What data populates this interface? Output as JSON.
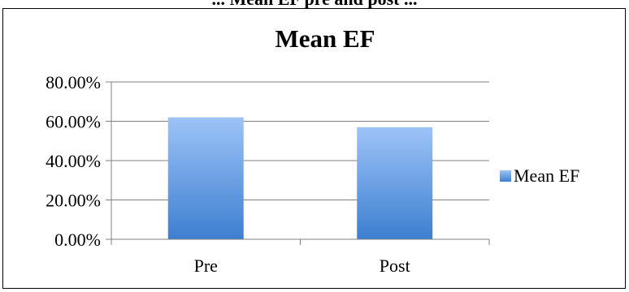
{
  "caption_fragment": "... Mean EF pre and post ...",
  "chart_data": {
    "type": "bar",
    "title": "Mean EF",
    "categories": [
      "Pre",
      "Post"
    ],
    "series": [
      {
        "name": "Mean EF",
        "values": [
          0.62,
          0.57
        ]
      }
    ],
    "ylim": [
      0,
      0.8
    ],
    "yticks": [
      0,
      0.2,
      0.4,
      0.6,
      0.8
    ],
    "ytick_labels": [
      "0.00%",
      "20.00%",
      "40.00%",
      "60.00%",
      "80.00%"
    ],
    "grid": true,
    "legend_position": "right",
    "colors": {
      "bar_top": "#9dc3f7",
      "bar_bottom": "#3d7fd0",
      "grid": "#808080"
    }
  }
}
